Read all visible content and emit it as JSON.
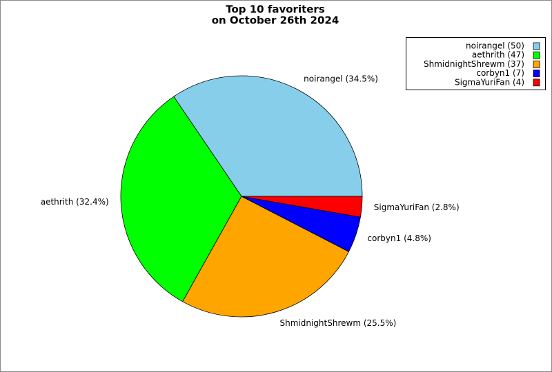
{
  "chart_data": {
    "type": "pie",
    "title": [
      "Top 10 favoriters",
      "on October 26th 2024"
    ],
    "categories": [
      "noirangel",
      "aethrith",
      "ShmidnightShrewm",
      "corbyn1",
      "SigmaYuriFan"
    ],
    "values": [
      50,
      47,
      37,
      7,
      4
    ],
    "value_labels": [
      "noirangel (34.5%)",
      "aethrith (32.4%)",
      "ShmidnightShrewm (25.5%)",
      "corbyn1 (4.8%)",
      "SigmaYuriFan (2.8%)"
    ],
    "legend_labels": [
      "noirangel (50)",
      "aethrith (47)",
      "ShmidnightShrewm (37)",
      "corbyn1 (7)",
      "SigmaYuriFan (4)"
    ],
    "colors": [
      "#87ceeb",
      "#00ff00",
      "#ffa500",
      "#0000ff",
      "#ff0000"
    ],
    "legend": "upper right"
  }
}
